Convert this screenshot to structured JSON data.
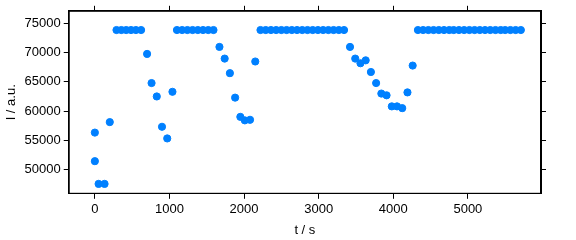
{
  "chart_data": {
    "type": "scatter",
    "x_label": "t / s",
    "y_label": "I / a.u.",
    "x": [
      0,
      0,
      50,
      130,
      200,
      290,
      355,
      420,
      485,
      550,
      620,
      700,
      760,
      830,
      900,
      970,
      1040,
      1100,
      1170,
      1240,
      1310,
      1380,
      1450,
      1520,
      1590,
      1670,
      1740,
      1810,
      1880,
      1950,
      2010,
      2080,
      2150,
      2220,
      2290,
      2360,
      2430,
      2500,
      2570,
      2640,
      2710,
      2780,
      2850,
      2920,
      2990,
      3060,
      3130,
      3200,
      3270,
      3340,
      3420,
      3490,
      3560,
      3630,
      3700,
      3770,
      3840,
      3910,
      3980,
      4050,
      4120,
      4190,
      4260,
      4330,
      4400,
      4470,
      4540,
      4610,
      4680,
      4750,
      4810,
      4880,
      4950,
      5020,
      5090,
      5160,
      5230,
      5300,
      5370,
      5440,
      5500,
      5570,
      5640,
      5710
    ],
    "values": [
      56300,
      51400,
      47500,
      47500,
      58100,
      73900,
      73900,
      73900,
      73900,
      73900,
      73900,
      69800,
      64800,
      62500,
      57300,
      55300,
      63300,
      73900,
      73900,
      73900,
      73900,
      73900,
      73900,
      73900,
      73900,
      71000,
      69000,
      66500,
      62300,
      59000,
      58400,
      58500,
      68500,
      73900,
      73900,
      73900,
      73900,
      73900,
      73900,
      73900,
      73900,
      73900,
      73900,
      73900,
      73900,
      73900,
      73900,
      73900,
      73900,
      73900,
      71000,
      69000,
      68200,
      68700,
      66700,
      64800,
      63000,
      62700,
      60800,
      60800,
      60500,
      63200,
      67800,
      73900,
      73900,
      73900,
      73900,
      73900,
      73900,
      73900,
      73900,
      73900,
      73900,
      73900,
      73900,
      73900,
      73900,
      73900,
      73900,
      73900,
      73900,
      73900,
      73900,
      73900
    ],
    "color": "#0080ff",
    "marker": "circle",
    "xlim": [
      -350,
      5980
    ],
    "xticks": [
      0,
      1000,
      2000,
      3000,
      4000,
      5000
    ],
    "ylim": [
      45800,
      77200
    ],
    "yticks": [
      50000,
      55000,
      60000,
      65000,
      70000,
      75000
    ],
    "grid": false
  }
}
